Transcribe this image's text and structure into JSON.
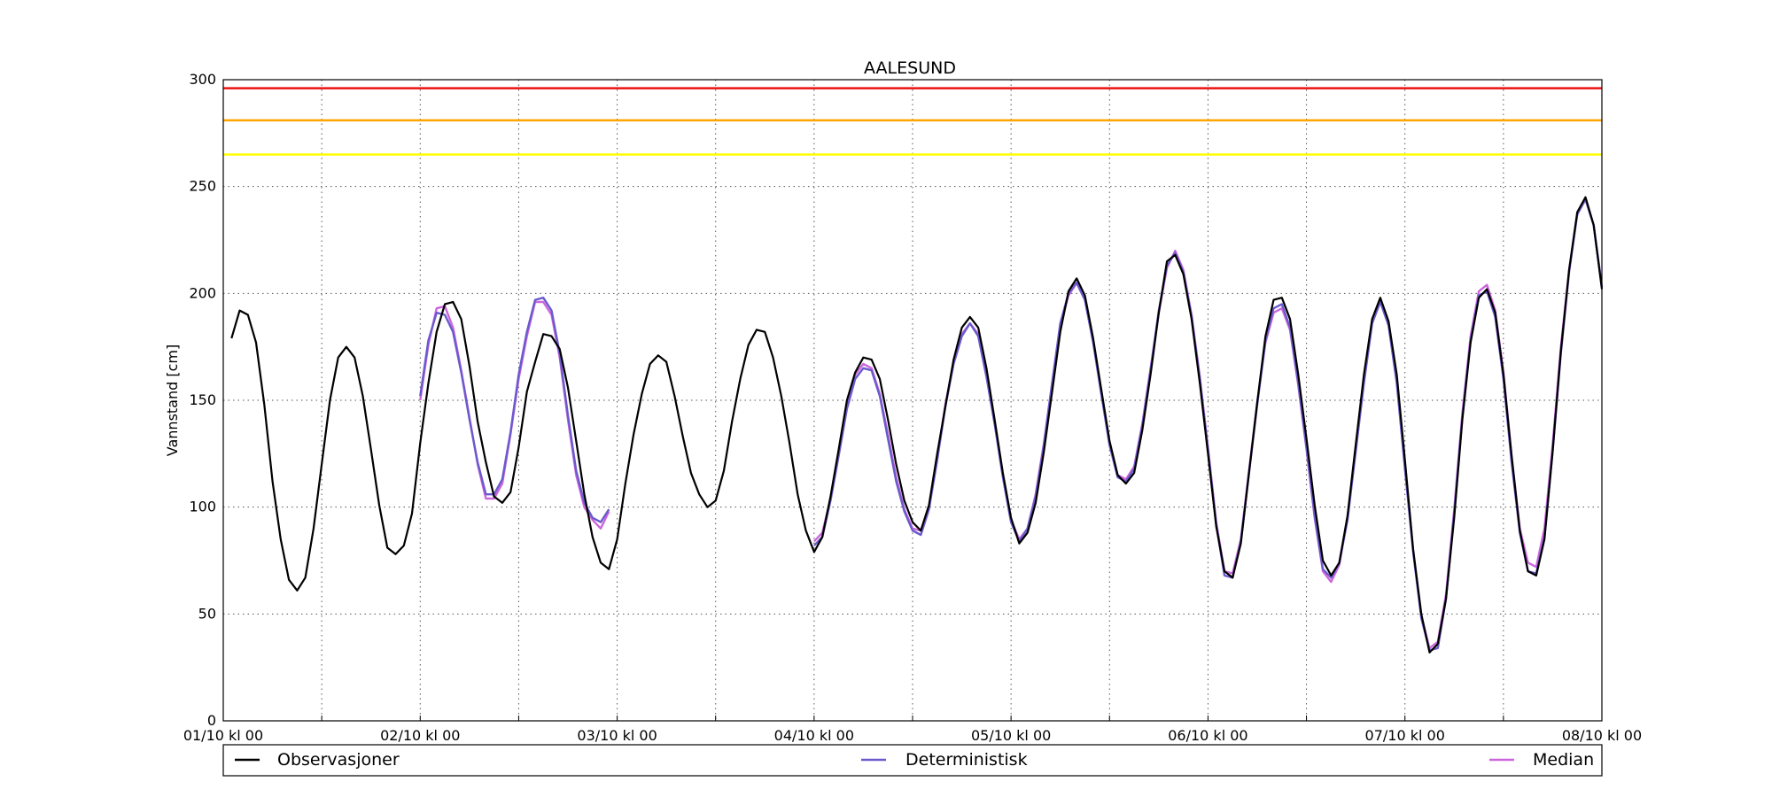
{
  "chart_data": {
    "type": "line",
    "title": "AALESUND",
    "ylabel": "Vannstand [cm]",
    "xlabel": "",
    "x_range_hours": [
      0,
      168
    ],
    "ylim": [
      0,
      300
    ],
    "yticks": [
      0,
      50,
      100,
      150,
      200,
      250,
      300
    ],
    "x_tick_labels": [
      {
        "hour": 0,
        "label": "01/10 kl 00"
      },
      {
        "hour": 24,
        "label": "02/10 kl 00"
      },
      {
        "hour": 48,
        "label": "03/10 kl 00"
      },
      {
        "hour": 72,
        "label": "04/10 kl 00"
      },
      {
        "hour": 96,
        "label": "05/10 kl 00"
      },
      {
        "hour": 120,
        "label": "06/10 kl 00"
      },
      {
        "hour": 144,
        "label": "07/10 kl 00"
      },
      {
        "hour": 168,
        "label": "08/10 kl 00"
      }
    ],
    "x_minor_gridlines_hours": [
      12,
      36,
      60,
      84,
      108,
      132,
      156
    ],
    "grid": true,
    "legend_position": "bottom",
    "threshold_lines": [
      {
        "value": 296,
        "color": "#ee1111"
      },
      {
        "value": 281,
        "color": "#ffa500"
      },
      {
        "value": 265,
        "color": "#ffff00"
      }
    ],
    "series": [
      {
        "name": "Observasjoner",
        "color": "#000000",
        "x": [
          1,
          2,
          3,
          4,
          5,
          6,
          7,
          8,
          9,
          10,
          11,
          12,
          13,
          14,
          15,
          16,
          17,
          18,
          19,
          20,
          21,
          22,
          23,
          24,
          25,
          26,
          27,
          28,
          29,
          30,
          31,
          32,
          33,
          34,
          35,
          36,
          37,
          38,
          39,
          40,
          41,
          42,
          43,
          44,
          45,
          46,
          47,
          48,
          49,
          50,
          51,
          52,
          53,
          54,
          55,
          56,
          57,
          58,
          59,
          60,
          61,
          62,
          63,
          64,
          65,
          66,
          67,
          68,
          69,
          70,
          71,
          72,
          73,
          74,
          75,
          76,
          77,
          78,
          79,
          80,
          81,
          82,
          83,
          84,
          85,
          86,
          87,
          88,
          89,
          90,
          91,
          92,
          93,
          94,
          95,
          96,
          97,
          98,
          99,
          100,
          101,
          102,
          103,
          104,
          105,
          106,
          107,
          108,
          109,
          110,
          111,
          112,
          113,
          114,
          115,
          116,
          117,
          118,
          119,
          120,
          121,
          122,
          123,
          124,
          125,
          126,
          127,
          128,
          129,
          130,
          131,
          132,
          133,
          134,
          135,
          136,
          137,
          138,
          139,
          140,
          141,
          142,
          143,
          144,
          145,
          146,
          147,
          148,
          149,
          150,
          151,
          152,
          153,
          154,
          155,
          156,
          157,
          158,
          159,
          160,
          161,
          162,
          163,
          164,
          165,
          166,
          167,
          168
        ],
        "values": [
          179,
          192,
          190,
          177,
          148,
          112,
          85,
          66,
          61,
          67,
          90,
          120,
          150,
          170,
          175,
          170,
          152,
          127,
          101,
          81,
          78,
          82,
          97,
          130,
          158,
          182,
          195,
          196,
          188,
          166,
          140,
          121,
          105,
          102,
          107,
          128,
          154,
          168,
          181,
          180,
          174,
          156,
          131,
          106,
          86,
          74,
          71,
          85,
          111,
          134,
          153,
          167,
          171,
          168,
          152,
          133,
          116,
          106,
          100,
          103,
          117,
          140,
          160,
          176,
          183,
          182,
          170,
          152,
          130,
          106,
          89,
          79,
          86,
          105,
          127,
          150,
          163,
          170,
          169,
          160,
          141,
          120,
          103,
          93,
          89,
          101,
          125,
          147,
          169,
          184,
          189,
          184,
          165,
          141,
          116,
          95,
          83,
          88,
          102,
          126,
          154,
          182,
          201,
          207,
          199,
          179,
          155,
          131,
          115,
          111,
          116,
          136,
          162,
          191,
          215,
          218,
          209,
          188,
          158,
          125,
          91,
          70,
          67,
          83,
          116,
          149,
          180,
          197,
          198,
          188,
          162,
          132,
          101,
          75,
          68,
          74,
          96,
          129,
          162,
          188,
          198,
          187,
          162,
          122,
          80,
          50,
          32,
          36,
          57,
          95,
          141,
          177,
          198,
          202,
          191,
          162,
          124,
          89,
          70,
          68,
          85,
          126,
          173,
          211,
          238,
          245,
          232,
          202
        ]
      },
      {
        "name": "Deterministisk",
        "color": "#6a5acd",
        "x": [
          24,
          25,
          26,
          27,
          28,
          29,
          30,
          31,
          32,
          33,
          34,
          35,
          36,
          37,
          38,
          39,
          40,
          41,
          42,
          43,
          44,
          45,
          46,
          47,
          48,
          72,
          73,
          74,
          75,
          76,
          77,
          78,
          79,
          80,
          81,
          82,
          83,
          84,
          85,
          86,
          87,
          88,
          89,
          90,
          91,
          92,
          93,
          94,
          95,
          96,
          97,
          98,
          99,
          100,
          101,
          102,
          103,
          104,
          105,
          106,
          107,
          108,
          109,
          110,
          111,
          112,
          113,
          114,
          115,
          116,
          117,
          118,
          119,
          120,
          121,
          122,
          123,
          124,
          125,
          126,
          127,
          128,
          129,
          130,
          131,
          132,
          133,
          134,
          135,
          136,
          137,
          138,
          139,
          140,
          141,
          142,
          143,
          144,
          145,
          146,
          147,
          148,
          149,
          150,
          151,
          152,
          153,
          154,
          155,
          156,
          157,
          158,
          159,
          160,
          161,
          162,
          163,
          164,
          165,
          166,
          167,
          168
        ],
        "values": [
          152,
          178,
          191,
          190,
          182,
          163,
          141,
          121,
          106,
          106,
          113,
          135,
          162,
          182,
          197,
          198,
          192,
          172,
          143,
          117,
          102,
          95,
          93,
          99,
          null,
          82,
          86,
          103,
          124,
          146,
          160,
          165,
          164,
          152,
          132,
          112,
          98,
          89,
          87,
          99,
          122,
          147,
          167,
          180,
          186,
          180,
          161,
          139,
          114,
          93,
          84,
          90,
          105,
          129,
          158,
          186,
          200,
          205,
          197,
          177,
          153,
          129,
          114,
          112,
          118,
          138,
          164,
          192,
          213,
          219,
          210,
          189,
          160,
          127,
          92,
          68,
          67,
          84,
          116,
          148,
          178,
          193,
          195,
          184,
          158,
          128,
          96,
          71,
          67,
          74,
          94,
          126,
          158,
          186,
          196,
          185,
          158,
          118,
          79,
          48,
          33,
          34,
          57,
          97,
          142,
          178,
          199,
          201,
          189,
          160,
          121,
          88,
          70,
          69,
          86,
          126,
          172,
          210,
          237,
          244,
          232,
          203
        ]
      },
      {
        "name": "Median",
        "color": "#cc66dd",
        "x": [
          24,
          25,
          26,
          27,
          28,
          29,
          30,
          31,
          32,
          33,
          34,
          35,
          36,
          37,
          38,
          39,
          40,
          41,
          42,
          43,
          44,
          45,
          46,
          47,
          48,
          72,
          73,
          74,
          75,
          76,
          77,
          78,
          79,
          80,
          81,
          82,
          83,
          84,
          85,
          86,
          87,
          88,
          89,
          90,
          91,
          92,
          93,
          94,
          95,
          96,
          97,
          98,
          99,
          100,
          101,
          102,
          103,
          104,
          105,
          106,
          107,
          108,
          109,
          110,
          111,
          112,
          113,
          114,
          115,
          116,
          117,
          118,
          119,
          120,
          121,
          122,
          123,
          124,
          125,
          126,
          127,
          128,
          129,
          130,
          131,
          132,
          133,
          134,
          135,
          136,
          137,
          138,
          139,
          140,
          141,
          142,
          143,
          144,
          145,
          146,
          147,
          148,
          149,
          150,
          151,
          152,
          153,
          154,
          155,
          156,
          157,
          158,
          159,
          160,
          161,
          162,
          163,
          164,
          165,
          166,
          167,
          168
        ],
        "values": [
          150,
          176,
          193,
          194,
          184,
          164,
          142,
          120,
          104,
          104,
          111,
          134,
          160,
          180,
          196,
          196,
          190,
          170,
          141,
          115,
          100,
          94,
          90,
          98,
          null,
          84,
          88,
          104,
          126,
          147,
          162,
          167,
          165,
          153,
          134,
          114,
          99,
          90,
          89,
          100,
          123,
          148,
          168,
          181,
          186,
          181,
          162,
          139,
          115,
          94,
          85,
          90,
          106,
          130,
          158,
          185,
          199,
          205,
          197,
          178,
          153,
          130,
          115,
          113,
          119,
          139,
          165,
          191,
          212,
          220,
          211,
          190,
          161,
          128,
          93,
          70,
          69,
          85,
          117,
          149,
          177,
          191,
          193,
          183,
          157,
          127,
          95,
          70,
          65,
          73,
          95,
          126,
          159,
          187,
          197,
          186,
          159,
          119,
          80,
          49,
          34,
          37,
          59,
          99,
          144,
          180,
          201,
          204,
          192,
          163,
          124,
          90,
          74,
          72,
          90,
          129,
          175,
          211,
          237,
          244,
          232,
          203
        ]
      }
    ]
  }
}
